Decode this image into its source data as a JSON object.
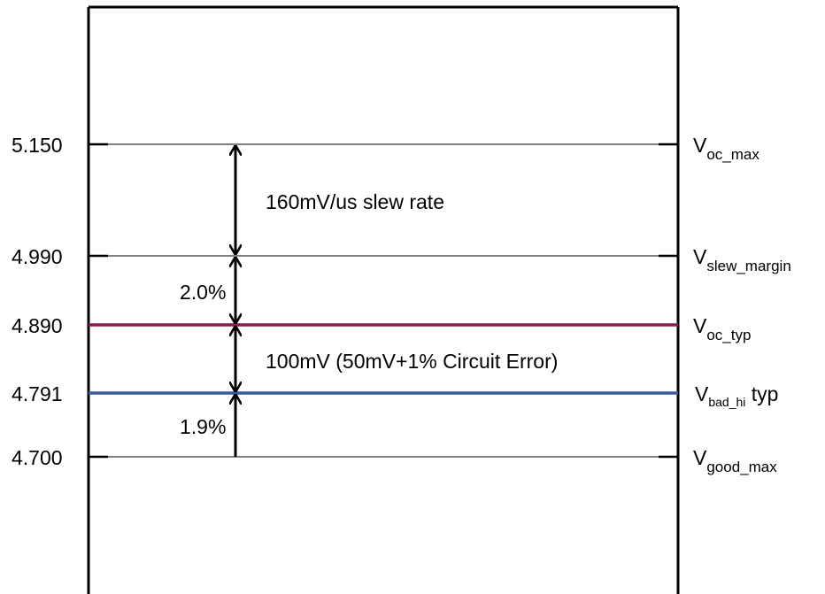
{
  "levels": [
    {
      "id": "voc-max",
      "value": "5.150",
      "signal": {
        "main": "V",
        "sub": "oc_max",
        "suffix": ""
      },
      "color": "#000000"
    },
    {
      "id": "vslew-margin",
      "value": "4.990",
      "signal": {
        "main": "V",
        "sub": "slew_margin",
        "suffix": ""
      },
      "color": "#000000"
    },
    {
      "id": "voc-typ",
      "value": "4.890",
      "signal": {
        "main": "V",
        "sub": "oc_typ",
        "suffix": ""
      },
      "color": "#8b1a4a"
    },
    {
      "id": "vbad-hi-typ",
      "value": "4.791",
      "signal": {
        "main": "V",
        "sub": "bad_hi",
        "suffix": " typ"
      },
      "color": "#3a5a9c"
    },
    {
      "id": "vgood-max",
      "value": "4.700",
      "signal": {
        "main": "V",
        "sub": "good_max",
        "suffix": ""
      },
      "color": "#000000"
    }
  ],
  "annotations": {
    "slew_rate": "160mV/us slew rate",
    "pct_upper": "2.0%",
    "circuit_error": "100mV (50mV+1% Circuit Error)",
    "pct_lower": "1.9%"
  }
}
